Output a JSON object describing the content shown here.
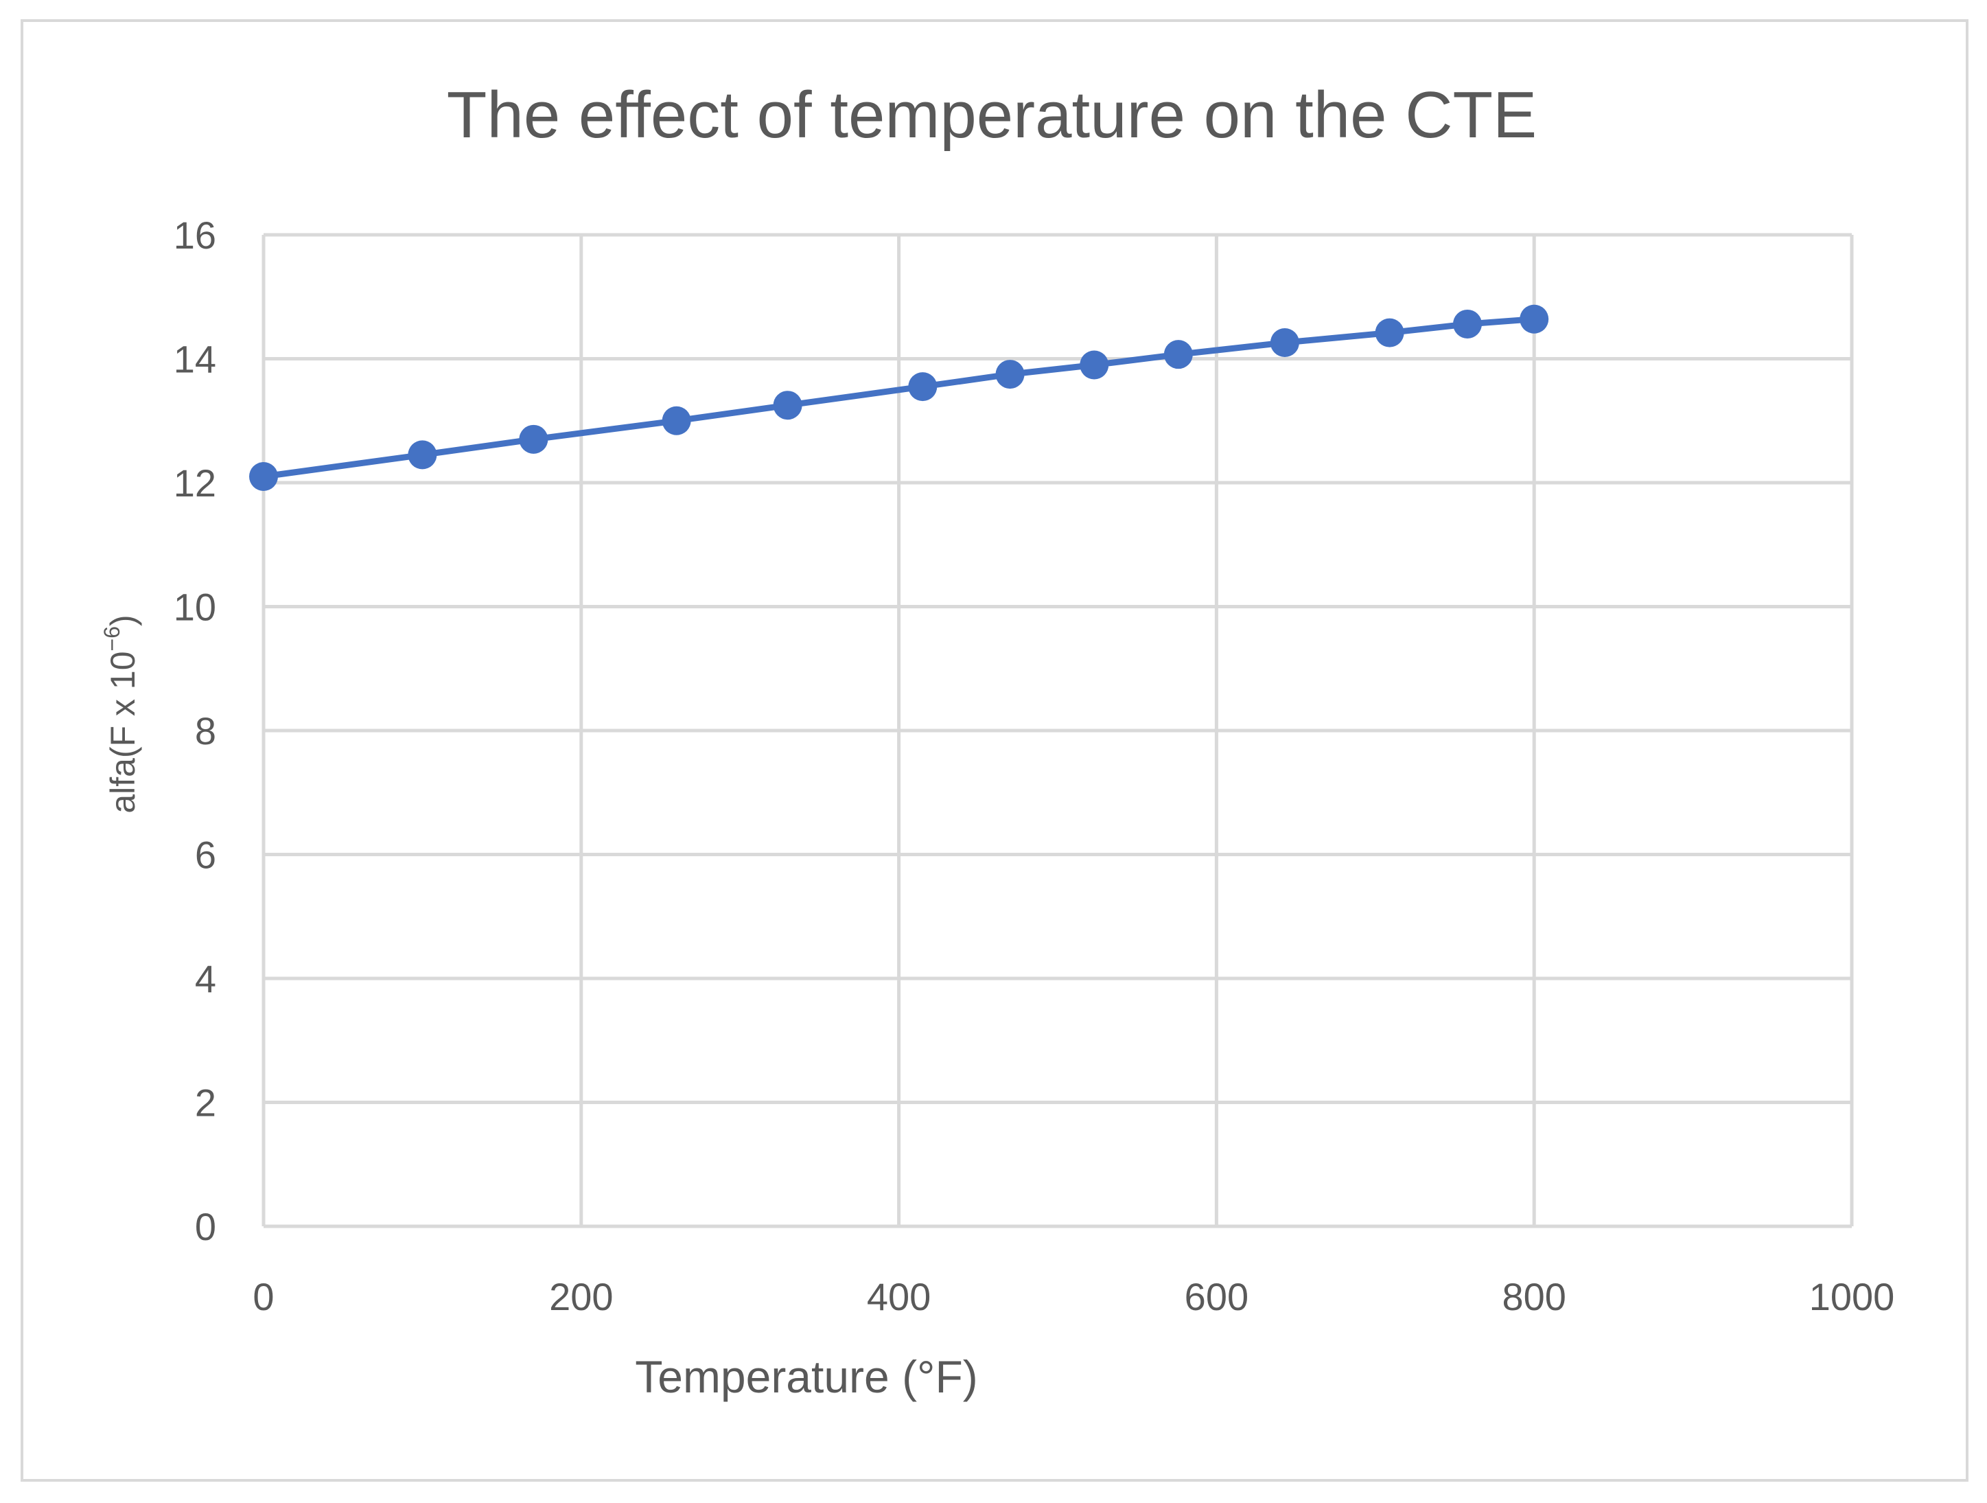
{
  "chart_data": {
    "type": "line",
    "title": "The effect of temperature on the CTE",
    "xlabel": "Temperature (°F)",
    "ylabel": "alfa(F x 10",
    "ylabel_superscript": "−6",
    "ylabel_suffix": ")",
    "xlim": [
      0,
      1000
    ],
    "ylim": [
      0,
      16
    ],
    "x_ticks": [
      0,
      200,
      400,
      600,
      800,
      1000
    ],
    "y_ticks": [
      0,
      2,
      4,
      6,
      8,
      10,
      12,
      14,
      16
    ],
    "grid": true,
    "legend": "none",
    "series": [
      {
        "name": "CTE",
        "color": "#4472c4",
        "marker": "circle",
        "x": [
          0,
          100,
          170,
          260,
          330,
          415,
          470,
          523,
          576,
          643,
          709,
          758,
          800
        ],
        "y": [
          12.1,
          12.45,
          12.7,
          13.0,
          13.25,
          13.55,
          13.75,
          13.9,
          14.07,
          14.26,
          14.42,
          14.56,
          14.64
        ]
      }
    ],
    "colors": {
      "grid": "#d9d9d9",
      "text": "#595959",
      "frame": "#d9d9d9"
    }
  }
}
